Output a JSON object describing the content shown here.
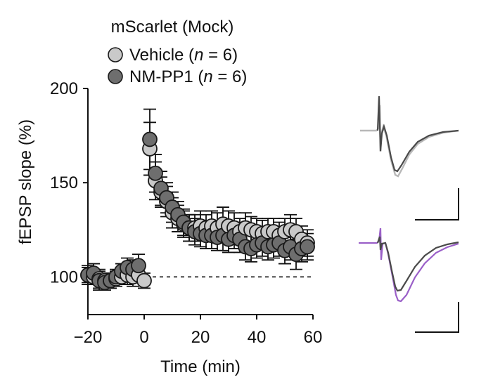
{
  "chart_data": {
    "type": "scatter",
    "title": "mScarlet (Mock)",
    "xlabel": "Time (min)",
    "ylabel": "fEPSP slope (%)",
    "xlim": [
      -20,
      60
    ],
    "ylim": [
      80,
      200
    ],
    "xticks": [
      -20,
      0,
      20,
      40,
      60
    ],
    "yticks": [
      100,
      150,
      200
    ],
    "xtick_labels": [
      "−20",
      "0",
      "20",
      "40",
      "60"
    ],
    "ytick_labels": [
      "100",
      "150",
      "200"
    ],
    "baseline": 100,
    "legend_position": "top-left",
    "colors": {
      "vehicle": "#c9c9c9",
      "nmpp1": "#6e6e6e",
      "edge": "#1a1a1a",
      "trace_light": "#b8b8b8",
      "trace_dark": "#4a4a4a",
      "trace_purple": "#9a5fc8"
    },
    "series": [
      {
        "name": "Vehicle",
        "legend_prefix": "Vehicle (",
        "legend_italic": "n",
        "legend_suffix": " = 6)",
        "color": "#c9c9c9",
        "x": [
          -20,
          -18,
          -16,
          -14,
          -12,
          -10,
          -8,
          -6,
          -4,
          -2,
          0,
          2,
          4,
          6,
          8,
          10,
          12,
          14,
          16,
          18,
          20,
          22,
          24,
          26,
          28,
          30,
          32,
          34,
          36,
          38,
          40,
          42,
          44,
          46,
          48,
          50,
          52,
          54,
          56,
          58
        ],
        "y": [
          101,
          100,
          99,
          98,
          98,
          99,
          100,
          101,
          100,
          101,
          98,
          168,
          151,
          145,
          140,
          134,
          131,
          128,
          126,
          126,
          127,
          126,
          127,
          126,
          128,
          127,
          126,
          124,
          126,
          125,
          124,
          123,
          124,
          124,
          122,
          124,
          125,
          124,
          120,
          118
        ],
        "err": [
          4,
          4,
          5,
          4,
          4,
          4,
          4,
          5,
          5,
          4,
          4,
          14,
          10,
          8,
          8,
          8,
          7,
          7,
          7,
          7,
          8,
          7,
          8,
          8,
          9,
          8,
          8,
          7,
          8,
          7,
          7,
          7,
          7,
          7,
          7,
          7,
          8,
          7,
          7,
          7
        ]
      },
      {
        "name": "NM-PP1",
        "legend_prefix": "NM-PP1 (",
        "legend_italic": "n",
        "legend_suffix": " = 6)",
        "color": "#6e6e6e",
        "x": [
          -20,
          -18,
          -16,
          -14,
          -12,
          -10,
          -8,
          -6,
          -4,
          -2,
          2,
          4,
          6,
          8,
          10,
          12,
          14,
          16,
          18,
          20,
          22,
          24,
          26,
          28,
          30,
          32,
          34,
          36,
          38,
          40,
          42,
          44,
          46,
          48,
          50,
          52,
          54,
          56,
          58
        ],
        "y": [
          101,
          102,
          98,
          97,
          98,
          100,
          103,
          105,
          104,
          106,
          173,
          155,
          147,
          142,
          137,
          133,
          129,
          126,
          124,
          123,
          122,
          122,
          121,
          122,
          120,
          122,
          120,
          116,
          115,
          117,
          118,
          116,
          117,
          118,
          114,
          116,
          112,
          115,
          116
        ],
        "err": [
          5,
          5,
          5,
          4,
          4,
          4,
          4,
          5,
          5,
          6,
          16,
          10,
          9,
          8,
          8,
          7,
          7,
          7,
          7,
          7,
          7,
          7,
          7,
          8,
          7,
          7,
          7,
          7,
          7,
          7,
          7,
          7,
          7,
          7,
          7,
          7,
          8,
          7,
          7
        ]
      }
    ]
  }
}
